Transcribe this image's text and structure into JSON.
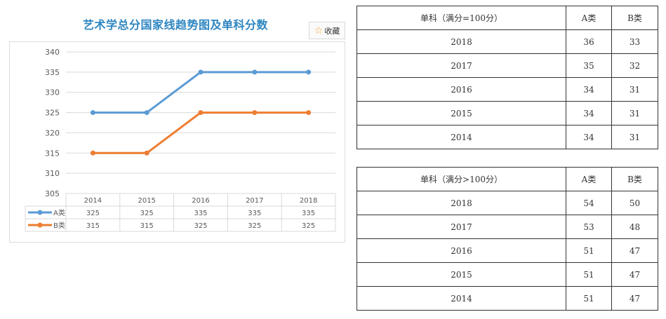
{
  "chart_title": "艺术学总分国家线趋势图及单科分数",
  "favorite_button": {
    "icon": "star-icon",
    "label": "收藏"
  },
  "chart_data": {
    "type": "line",
    "categories": [
      "2014",
      "2015",
      "2016",
      "2017",
      "2018"
    ],
    "series": [
      {
        "name": "A类",
        "values": [
          325,
          325,
          335,
          335,
          335
        ],
        "color": "#5b9bd5"
      },
      {
        "name": "B类",
        "values": [
          315,
          315,
          325,
          325,
          325
        ],
        "color": "#ed7d31"
      }
    ],
    "y_ticks": [
      305,
      310,
      315,
      320,
      325,
      330,
      335,
      340
    ],
    "ylim": [
      305,
      340
    ],
    "grid": true,
    "data_table": true
  },
  "table1": {
    "header": [
      "单科（满分=100分）",
      "A类",
      "B类"
    ],
    "rows": [
      [
        "2018",
        "36",
        "33"
      ],
      [
        "2017",
        "35",
        "32"
      ],
      [
        "2016",
        "34",
        "31"
      ],
      [
        "2015",
        "34",
        "31"
      ],
      [
        "2014",
        "34",
        "31"
      ]
    ]
  },
  "table2": {
    "header": [
      "单科（满分>100分）",
      "A类",
      "B类"
    ],
    "rows": [
      [
        "2018",
        "54",
        "50"
      ],
      [
        "2017",
        "53",
        "48"
      ],
      [
        "2016",
        "51",
        "47"
      ],
      [
        "2015",
        "51",
        "47"
      ],
      [
        "2014",
        "51",
        "47"
      ]
    ]
  }
}
